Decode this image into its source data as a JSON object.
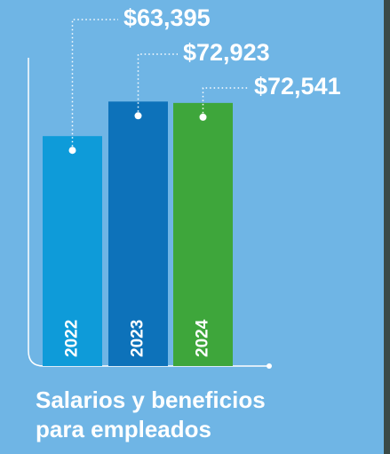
{
  "chart_data": {
    "type": "bar",
    "title": "Salarios y beneficios para empleados",
    "categories": [
      "2022",
      "2023",
      "2024"
    ],
    "values": [
      63395,
      72923,
      72541
    ],
    "value_labels": [
      "$63,395",
      "$72,923",
      "$72,541"
    ],
    "colors": [
      "#0e9bd9",
      "#0d72ba",
      "#3ea63b"
    ],
    "ylim": [
      0,
      85000
    ]
  }
}
